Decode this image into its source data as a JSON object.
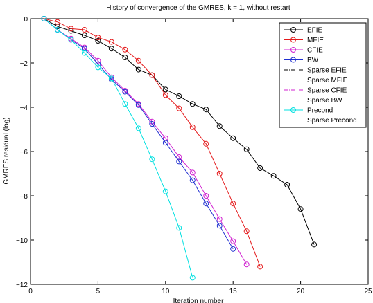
{
  "chart_data": {
    "type": "line",
    "title": "History of convergence of the GMRES, k = 1, without restart",
    "xlabel": "Iteration number",
    "ylabel": "GMRES residual (log)",
    "xlim": [
      0,
      25
    ],
    "ylim": [
      -12,
      0
    ],
    "xticks": [
      0,
      5,
      10,
      15,
      20,
      25
    ],
    "yticks": [
      0,
      -2,
      -4,
      -6,
      -8,
      -10,
      -12
    ],
    "xtick_labels": [
      "0",
      "5",
      "10",
      "15",
      "20",
      "25"
    ],
    "ytick_labels": [
      "0",
      "−2",
      "−4",
      "−6",
      "−8",
      "−10",
      "−12"
    ],
    "grid": false,
    "legend_position": "top-right",
    "series": [
      {
        "name": "EFIE",
        "color": "#000000",
        "style": "solid",
        "marker": "circle",
        "x": [
          1,
          2,
          3,
          4,
          5,
          6,
          7,
          8,
          9,
          10,
          11,
          12,
          13,
          14,
          15,
          16,
          17,
          18,
          19,
          20,
          21
        ],
        "y": [
          0,
          -0.35,
          -0.55,
          -0.75,
          -1.0,
          -1.35,
          -1.75,
          -2.3,
          -2.55,
          -3.2,
          -3.5,
          -3.85,
          -4.1,
          -4.85,
          -5.4,
          -5.9,
          -6.75,
          -7.1,
          -7.5,
          -8.6,
          -10.2
        ]
      },
      {
        "name": "MFIE",
        "color": "#e41a1c",
        "style": "solid",
        "marker": "circle",
        "x": [
          1,
          2,
          3,
          4,
          5,
          6,
          7,
          8,
          9,
          10,
          11,
          12,
          13,
          14,
          15,
          16,
          17
        ],
        "y": [
          0,
          -0.15,
          -0.45,
          -0.5,
          -0.85,
          -1.05,
          -1.4,
          -1.9,
          -2.55,
          -3.45,
          -4.05,
          -4.9,
          -5.65,
          -7.0,
          -8.35,
          -9.6,
          -11.2
        ]
      },
      {
        "name": "CFIE",
        "color": "#d020d0",
        "style": "solid",
        "marker": "circle",
        "x": [
          1,
          2,
          3,
          4,
          5,
          6,
          7,
          8,
          9,
          10,
          11,
          12,
          13,
          14,
          15,
          16
        ],
        "y": [
          0,
          -0.5,
          -0.9,
          -1.3,
          -1.9,
          -2.65,
          -3.25,
          -3.85,
          -4.65,
          -5.4,
          -6.25,
          -6.95,
          -8.0,
          -9.05,
          -10.05,
          -11.1
        ]
      },
      {
        "name": "BW",
        "color": "#1f2fd0",
        "style": "solid",
        "marker": "circle",
        "x": [
          1,
          2,
          3,
          4,
          5,
          6,
          7,
          8,
          9,
          10,
          11,
          12,
          13,
          14,
          15
        ],
        "y": [
          0,
          -0.5,
          -0.95,
          -1.35,
          -2.05,
          -2.75,
          -3.3,
          -3.9,
          -4.75,
          -5.6,
          -6.45,
          -7.3,
          -8.35,
          -9.35,
          -10.4
        ]
      },
      {
        "name": "Sparse EFIE",
        "color": "#000000",
        "style": "dashdot",
        "marker": "none",
        "x": [],
        "y": []
      },
      {
        "name": "Sparse MFIE",
        "color": "#e41a1c",
        "style": "dashdot",
        "marker": "none",
        "x": [],
        "y": []
      },
      {
        "name": "Sparse CFIE",
        "color": "#d020d0",
        "style": "dashdot",
        "marker": "none",
        "x": [],
        "y": []
      },
      {
        "name": "Sparse BW",
        "color": "#1f2fd0",
        "style": "dashdot",
        "marker": "none",
        "x": [],
        "y": []
      },
      {
        "name": "Precond",
        "color": "#00e0e0",
        "style": "solid",
        "marker": "circle",
        "x": [
          1,
          2,
          3,
          4,
          5,
          6,
          7,
          8,
          9,
          10,
          11,
          12
        ],
        "y": [
          0,
          -0.5,
          -0.95,
          -1.55,
          -2.2,
          -2.7,
          -3.85,
          -4.95,
          -6.35,
          -7.8,
          -9.45,
          -11.7
        ]
      },
      {
        "name": "Sparse Precond",
        "color": "#00e0e0",
        "style": "dashed",
        "marker": "none",
        "x": [],
        "y": []
      }
    ]
  }
}
